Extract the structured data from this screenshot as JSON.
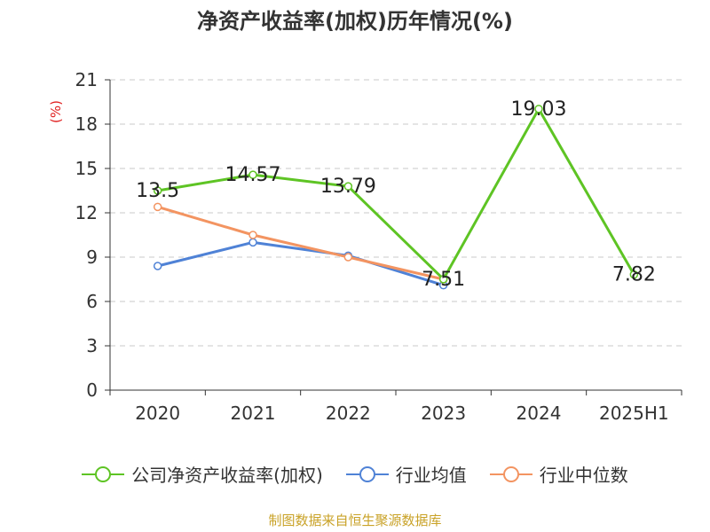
{
  "title": "净资产收益率(加权)历年情况(%)",
  "source_note": "制图数据来自恒生聚源数据库",
  "colors": {
    "company": "#5ec424",
    "industry_avg": "#4f82d6",
    "industry_median": "#f39461",
    "grid": "#c8c8c8",
    "axis": "#333333",
    "unit": "#e02020",
    "source": "#c9a227"
  },
  "legend": [
    {
      "label": "公司净资产收益率(加权)",
      "color_key": "company"
    },
    {
      "label": "行业均值",
      "color_key": "industry_avg"
    },
    {
      "label": "行业中位数",
      "color_key": "industry_median"
    }
  ],
  "chart_data": {
    "type": "line",
    "title": "净资产收益率(加权)历年情况(%)",
    "ylabel": "(%)",
    "xlabel": "",
    "categories": [
      "2020",
      "2021",
      "2022",
      "2023",
      "2024",
      "2025H1"
    ],
    "ylim": [
      0,
      21
    ],
    "yticks": [
      0,
      3,
      6,
      9,
      12,
      15,
      18,
      21
    ],
    "grid": true,
    "legend_position": "bottom",
    "series": [
      {
        "name": "公司净资产收益率(加权)",
        "color_key": "company",
        "values": [
          13.5,
          14.57,
          13.79,
          7.51,
          19.03,
          7.82
        ],
        "labels": [
          "13.5",
          "14.57",
          "13.79",
          "7.51",
          "19.03",
          "7.82"
        ]
      },
      {
        "name": "行业均值",
        "color_key": "industry_avg",
        "values": [
          8.4,
          10.0,
          9.1,
          7.1,
          null,
          null
        ]
      },
      {
        "name": "行业中位数",
        "color_key": "industry_median",
        "values": [
          12.4,
          10.5,
          9.0,
          7.5,
          null,
          null
        ]
      }
    ]
  }
}
